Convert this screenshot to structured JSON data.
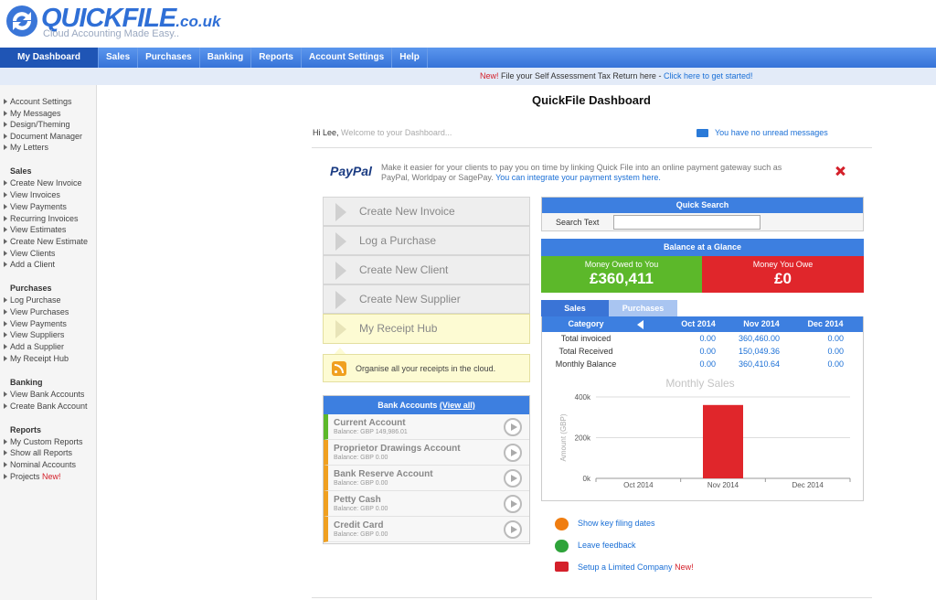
{
  "header": {
    "logo": "QUICKFILE",
    "logo_suffix": ".co.uk",
    "tagline": "Cloud Accounting Made Easy.."
  },
  "nav": [
    "My Dashboard",
    "Sales",
    "Purchases",
    "Banking",
    "Reports",
    "Account Settings",
    "Help"
  ],
  "notice": {
    "badge": "New!",
    "text": "File your Self Assessment Tax Return here -",
    "link": "Click here to get started!"
  },
  "sidebar": {
    "top": [
      "Account Settings",
      "My Messages",
      "Design/Theming",
      "Document Manager",
      "My Letters"
    ],
    "sections": [
      {
        "title": "Sales",
        "links": [
          "Create New Invoice",
          "View Invoices",
          "View Payments",
          "Recurring Invoices",
          "View Estimates",
          "Create New Estimate",
          "View Clients",
          "Add a Client"
        ]
      },
      {
        "title": "Purchases",
        "links": [
          "Log Purchase",
          "View Purchases",
          "View Payments",
          "View Suppliers",
          "Add a Supplier",
          "My Receipt Hub"
        ]
      },
      {
        "title": "Banking",
        "links": [
          "View Bank Accounts",
          "Create Bank Account"
        ]
      },
      {
        "title": "Reports",
        "links": [
          "My Custom Reports",
          "Show all Reports",
          "Nominal Accounts",
          "Projects"
        ],
        "badge": "New!"
      }
    ]
  },
  "dashboard": {
    "title": "QuickFile Dashboard",
    "greeting": "Hi Lee,",
    "welcome": "Welcome to your Dashboard...",
    "messages": "You have no unread messages",
    "paypal": {
      "logo": "PayPal",
      "text": "Make it easier for your clients to pay you on time by linking Quick File into an online payment gateway such as PayPal, Worldpay or SagePay.",
      "link": "You can integrate your payment system here."
    },
    "actions": [
      "Create New Invoice",
      "Log a Purchase",
      "Create New Client",
      "Create New Supplier",
      "My Receipt Hub"
    ],
    "receipt_tip": "Organise all your receipts in the cloud.",
    "bank": {
      "title": "Bank Accounts",
      "view_all": "(View all)",
      "accounts": [
        {
          "name": "Current Account",
          "balance": "Balance: GBP 149,986.01"
        },
        {
          "name": "Proprietor Drawings Account",
          "balance": "Balance: GBP 0.00"
        },
        {
          "name": "Bank Reserve Account",
          "balance": "Balance: GBP 0.00"
        },
        {
          "name": "Petty Cash",
          "balance": "Balance: GBP 0.00"
        },
        {
          "name": "Credit Card",
          "balance": "Balance: GBP 0.00"
        }
      ]
    },
    "quick_search": {
      "title": "Quick Search",
      "label": "Search Text"
    },
    "balance": {
      "title": "Balance at a Glance",
      "owed_label": "Money Owed to You",
      "owed": "£360,411",
      "owe_label": "Money You Owe",
      "owe": "£0"
    },
    "tabs": [
      "Sales",
      "Purchases"
    ],
    "table": {
      "header": [
        "Category",
        "Oct 2014",
        "Nov 2014",
        "Dec 2014"
      ],
      "rows": [
        [
          "Total invoiced",
          "0.00",
          "360,460.00",
          "0.00"
        ],
        [
          "Total Received",
          "0.00",
          "150,049.36",
          "0.00"
        ],
        [
          "Monthly Balance",
          "0.00",
          "360,410.64",
          "0.00"
        ]
      ]
    },
    "monthly_sales": {
      "type": "bar",
      "title": "Monthly Sales",
      "y_label": "Amount (GBP)",
      "categories": [
        "Oct 2014",
        "Nov 2014",
        "Dec 2014"
      ],
      "values": [
        0,
        360460,
        0
      ],
      "color": "#e0262b",
      "ylim": [
        0,
        400000
      ],
      "yticks": [
        {
          "value": 0,
          "label": "0k"
        },
        {
          "value": 200000,
          "label": "200k"
        },
        {
          "value": 400000,
          "label": "400k"
        }
      ],
      "grid": true
    },
    "links": [
      {
        "text": "Show key filing dates"
      },
      {
        "text": "Leave feedback"
      },
      {
        "text": "Setup a Limited Company",
        "badge": "New!"
      }
    ]
  }
}
